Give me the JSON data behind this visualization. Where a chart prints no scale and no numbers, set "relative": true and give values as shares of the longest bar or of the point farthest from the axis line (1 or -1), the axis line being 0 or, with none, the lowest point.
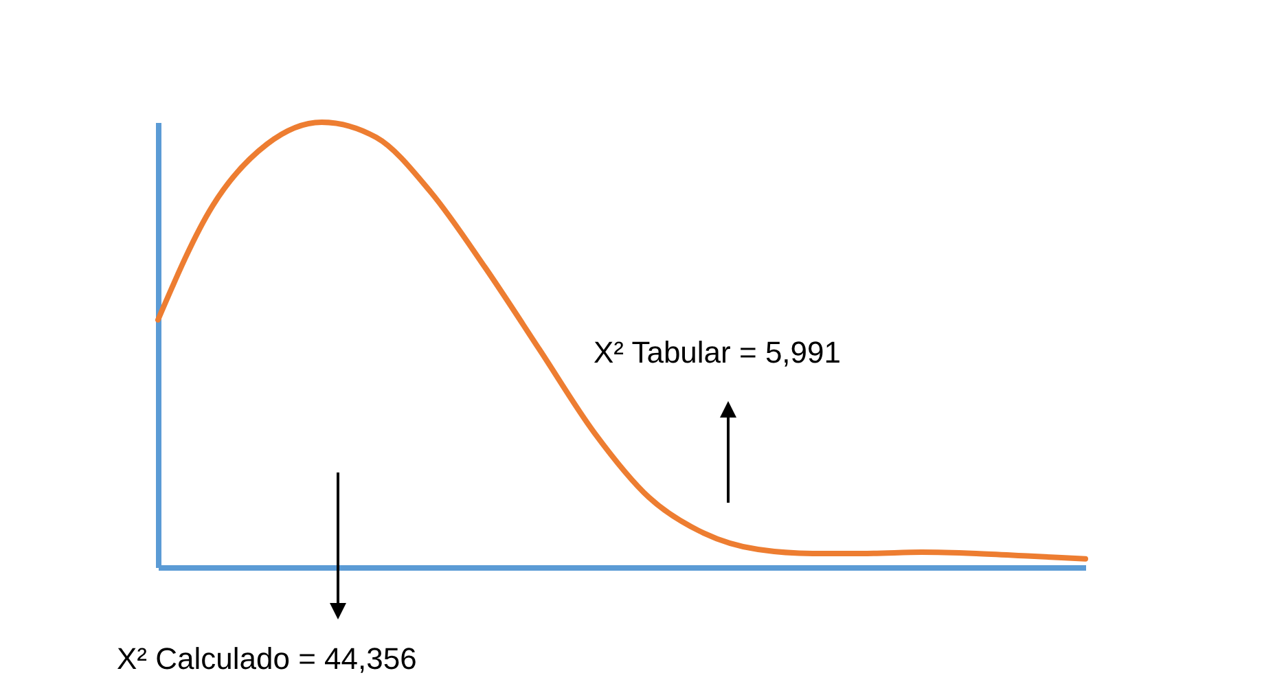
{
  "chart_data": {
    "type": "line",
    "relative": true,
    "categories": [
      null,
      null,
      null,
      null,
      null,
      null,
      null,
      null,
      null,
      null,
      null,
      null,
      null,
      null,
      null,
      null,
      null,
      null
    ],
    "series": [
      {
        "color": "#ed7d31",
        "values": [
          0.556,
          0.812,
          0.951,
          1,
          0.966,
          0.843,
          0.673,
          0.488,
          0.302,
          0.157,
          0.077,
          0.04,
          0.031,
          0.031,
          0.034,
          0.031,
          0.025,
          0.019
        ]
      }
    ],
    "annotations": [
      "X² Tabular = 5,991",
      "X² Calculado = 44,356"
    ],
    "line_style": "solid"
  }
}
